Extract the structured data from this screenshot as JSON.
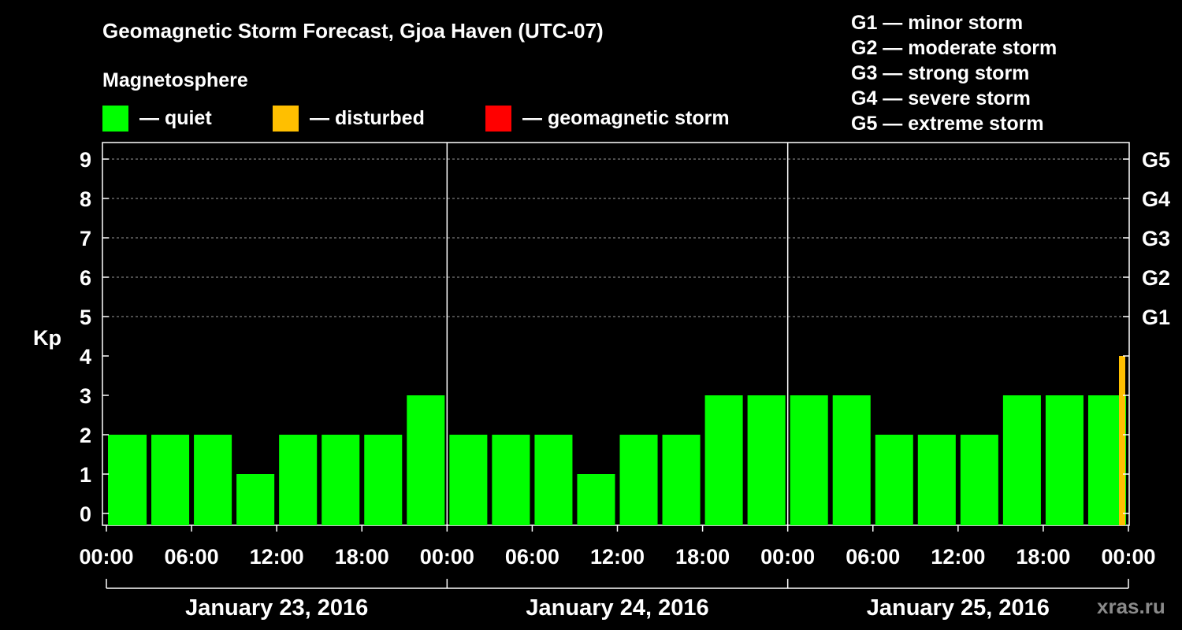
{
  "chart_data": {
    "type": "bar",
    "title": "Geomagnetic Storm Forecast, Gjoa Haven (UTC-07)",
    "ylabel": "Kp",
    "ylim": [
      0,
      9
    ],
    "yticks": [
      "0",
      "1",
      "2",
      "3",
      "4",
      "5",
      "6",
      "7",
      "8",
      "9"
    ],
    "right_ticks": [
      {
        "kp": 5,
        "label": "G1"
      },
      {
        "kp": 6,
        "label": "G2"
      },
      {
        "kp": 7,
        "label": "G3"
      },
      {
        "kp": 8,
        "label": "G4"
      },
      {
        "kp": 9,
        "label": "G5"
      }
    ],
    "xticks": [
      "00:00",
      "06:00",
      "12:00",
      "18:00",
      "00:00",
      "06:00",
      "12:00",
      "18:00",
      "00:00",
      "06:00",
      "12:00",
      "18:00",
      "00:00"
    ],
    "days": [
      "January 23, 2016",
      "January 24, 2016",
      "January 25, 2016"
    ],
    "x_hours": [
      0,
      3,
      6,
      9,
      12,
      15,
      18,
      21,
      24,
      27,
      30,
      33,
      36,
      39,
      42,
      45,
      48,
      51,
      54,
      57,
      60,
      63,
      66,
      69,
      72
    ],
    "values": [
      2,
      2,
      2,
      1,
      2,
      2,
      2,
      3,
      2,
      2,
      2,
      1,
      2,
      2,
      3,
      3,
      3,
      3,
      2,
      2,
      2,
      3,
      3,
      3,
      4
    ],
    "x_end_hour": 72,
    "last_bar_partial": true,
    "grid": true,
    "colors": {
      "quiet": "#00ff00",
      "disturbed": "#ffbf00",
      "storm": "#ff0000"
    }
  },
  "legend": {
    "heading": "Magnetosphere",
    "items": [
      {
        "key": "quiet",
        "color": "#00ff00",
        "label": "— quiet"
      },
      {
        "key": "disturbed",
        "color": "#ffbf00",
        "label": "— disturbed"
      },
      {
        "key": "storm",
        "color": "#ff0000",
        "label": "— geomagnetic storm"
      }
    ]
  },
  "storm_scale": [
    "G1 — minor storm",
    "G2 — moderate storm",
    "G3 — strong storm",
    "G4 — severe storm",
    "G5 — extreme storm"
  ],
  "watermark": "xras.ru"
}
